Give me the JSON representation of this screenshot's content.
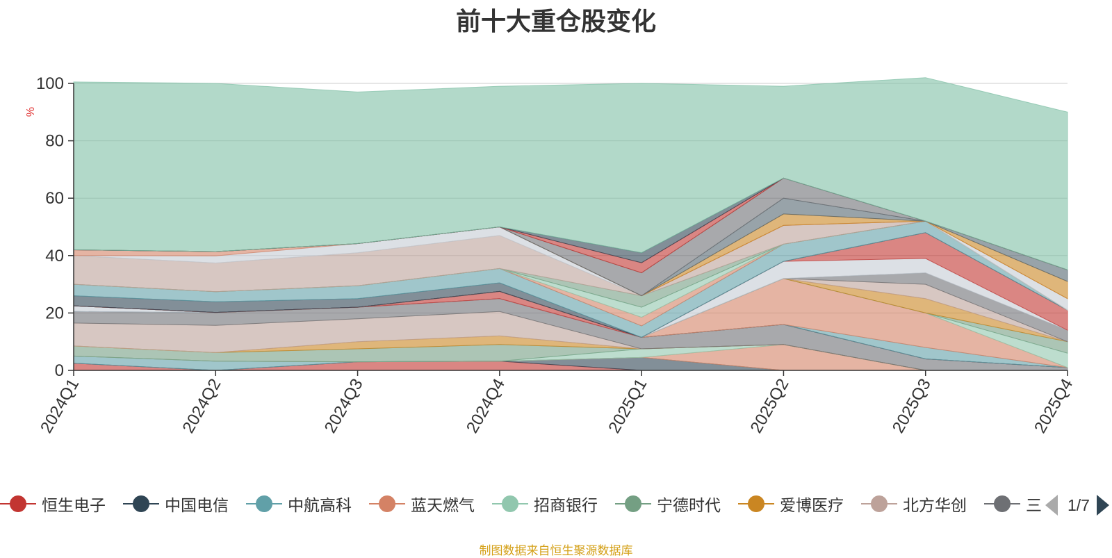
{
  "title": "前十大重仓股变化",
  "source": "制图数据来自恒生聚源数据库",
  "pager": {
    "text": "1/7"
  },
  "legend": [
    {
      "name": "恒生电子",
      "color": "#c23531"
    },
    {
      "name": "中国电信",
      "color": "#2f4554"
    },
    {
      "name": "中航高科",
      "color": "#61a0a8"
    },
    {
      "name": "蓝天燃气",
      "color": "#d48265"
    },
    {
      "name": "招商银行",
      "color": "#91c7ae"
    },
    {
      "name": "宁德时代",
      "color": "#749f83"
    },
    {
      "name": "爱博医疗",
      "color": "#ca8622"
    },
    {
      "name": "北方华创",
      "color": "#bda29a"
    },
    {
      "name": "三",
      "color": "#6e7074"
    }
  ],
  "chart_data": {
    "type": "area",
    "stacked": true,
    "title": "前十大重仓股变化",
    "ylabel": "%",
    "ylim": [
      0,
      100
    ],
    "yticks": [
      0,
      20,
      40,
      60,
      80,
      100
    ],
    "categories": [
      "2024Q1",
      "2024Q2",
      "2024Q3",
      "2024Q4",
      "2025Q1",
      "2025Q2",
      "2025Q3",
      "2025Q4"
    ],
    "series": [
      {
        "name": "恒生电子",
        "color": "#c23531",
        "values": [
          2.5,
          0,
          3,
          3.2,
          0,
          0,
          0,
          0
        ]
      },
      {
        "name": "中国电信",
        "color": "#2f4554",
        "values": [
          0,
          0,
          0,
          0,
          4.5,
          0,
          0,
          0
        ]
      },
      {
        "name": "中航高科",
        "color": "#61a0a8",
        "values": [
          2.5,
          3.2,
          0,
          0,
          0,
          0,
          0,
          0
        ]
      },
      {
        "name": "蓝天燃气",
        "color": "#d48265",
        "values": [
          0,
          0,
          0,
          0,
          0,
          9,
          0,
          0
        ]
      },
      {
        "name": "招商银行",
        "color": "#91c7ae",
        "values": [
          0,
          0,
          0,
          0,
          3,
          0,
          0,
          0
        ]
      },
      {
        "name": "宁德时代",
        "color": "#749f83",
        "values": [
          3.5,
          3,
          4.5,
          5.8,
          0,
          0,
          0,
          0
        ]
      },
      {
        "name": "爱博医疗",
        "color": "#ca8622",
        "values": [
          0,
          0,
          2.5,
          3,
          0,
          0,
          0,
          0
        ]
      },
      {
        "name": "北方华创",
        "color": "#bda29a",
        "values": [
          8,
          9.5,
          8,
          8.5,
          0,
          0,
          0,
          0
        ]
      },
      {
        "name": "三",
        "color": "#6e7074",
        "values": [
          4,
          4.5,
          4,
          4.5,
          4,
          7,
          4,
          1
        ]
      },
      {
        "name": "",
        "color": "#546570",
        "values": [
          0,
          0,
          0,
          0,
          0,
          0,
          0,
          0
        ]
      },
      {
        "name": "",
        "color": "#c4ccd3",
        "values": [
          2,
          0,
          0,
          0,
          0,
          0,
          0,
          0
        ]
      },
      {
        "name": "",
        "color": "#c23531",
        "values": [
          0,
          0,
          0,
          2.5,
          0,
          0,
          0,
          0
        ]
      },
      {
        "name": "",
        "color": "#2f4554",
        "values": [
          0,
          0,
          0,
          0,
          0,
          0,
          0,
          0
        ]
      },
      {
        "name": "",
        "color": "#61a0a8",
        "values": [
          0,
          0,
          0,
          0,
          0,
          0,
          4,
          0
        ]
      },
      {
        "name": "",
        "color": "#d48265",
        "values": [
          0,
          0,
          0,
          0,
          0,
          16,
          12,
          0
        ]
      },
      {
        "name": "",
        "color": "#91c7ae",
        "values": [
          0,
          0,
          0,
          0,
          0,
          0,
          0,
          5
        ]
      },
      {
        "name": "",
        "color": "#749f83",
        "values": [
          0,
          0,
          0,
          0,
          0,
          0,
          0,
          4
        ]
      },
      {
        "name": "",
        "color": "#ca8622",
        "values": [
          0,
          0,
          0,
          0,
          0,
          0,
          5,
          0
        ]
      },
      {
        "name": "",
        "color": "#bda29a",
        "values": [
          0,
          0,
          0,
          0,
          0,
          0,
          5,
          0
        ]
      },
      {
        "name": "",
        "color": "#6e7074",
        "values": [
          0,
          0,
          0,
          0,
          0,
          0,
          4,
          4
        ]
      },
      {
        "name": "",
        "color": "#c4ccd3",
        "values": [
          0,
          0,
          0,
          0,
          0,
          6,
          5,
          0
        ]
      },
      {
        "name": "",
        "color": "#c23531",
        "values": [
          0,
          0,
          0,
          0,
          0,
          0,
          9,
          7
        ]
      },
      {
        "name": "",
        "color": "#2f4554",
        "values": [
          3.5,
          3.7,
          3,
          3,
          0,
          0,
          0,
          0
        ]
      },
      {
        "name": "",
        "color": "#61a0a8",
        "values": [
          4,
          3.5,
          4.5,
          5,
          4,
          6,
          4,
          0
        ]
      },
      {
        "name": "",
        "color": "#d48265",
        "values": [
          0,
          0,
          0,
          0,
          3,
          0,
          0,
          0
        ]
      },
      {
        "name": "",
        "color": "#91c7ae",
        "values": [
          0,
          0,
          0,
          0,
          3.5,
          0,
          0,
          0
        ]
      },
      {
        "name": "",
        "color": "#749f83",
        "values": [
          0,
          0,
          0,
          0,
          4,
          0,
          0,
          0
        ]
      },
      {
        "name": "",
        "color": "#bda29a",
        "values": [
          10,
          10,
          11.5,
          11.5,
          0,
          6.5,
          0,
          0
        ]
      },
      {
        "name": "",
        "color": "#c4ccd3",
        "values": [
          0,
          2.5,
          3.2,
          3,
          0,
          0,
          0,
          4
        ]
      },
      {
        "name": "",
        "color": "#d48265",
        "values": [
          2,
          1.5,
          0,
          0,
          0,
          0,
          0,
          0
        ]
      },
      {
        "name": "",
        "color": "#ca8622",
        "values": [
          0,
          0,
          0,
          0,
          0,
          4,
          0,
          6
        ]
      },
      {
        "name": "",
        "color": "#546570",
        "values": [
          0,
          0,
          0,
          0,
          0,
          5.5,
          0,
          4
        ]
      },
      {
        "name": "",
        "color": "#6e7074",
        "values": [
          0,
          0,
          0,
          0,
          8,
          7,
          0,
          0
        ]
      },
      {
        "name": "",
        "color": "#c23531",
        "values": [
          0,
          0,
          0,
          0,
          3.5,
          0,
          0,
          0
        ]
      },
      {
        "name": "",
        "color": "#2f4554",
        "values": [
          0,
          0,
          0,
          0,
          3.5,
          0,
          0,
          0
        ]
      },
      {
        "name": "",
        "color": "#7fbfa5",
        "values": [
          58.5,
          58.6,
          52.8,
          49,
          59,
          32,
          50,
          55
        ]
      }
    ]
  }
}
